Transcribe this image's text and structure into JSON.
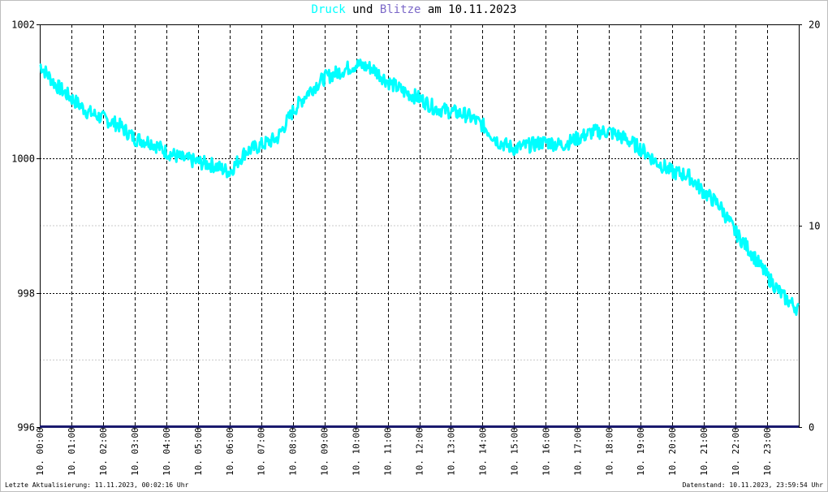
{
  "title": {
    "series1": "Druck",
    "connector": "und",
    "series2": "Blitze",
    "date_prefix": "am",
    "date": "10.11.2023"
  },
  "colors": {
    "druck": "#00ffff",
    "blitze": "#7b68c8",
    "blitze_line": "#1a1a6e",
    "grid": "#000000",
    "minor_grid": "#c8c8c8"
  },
  "footer": {
    "left": "Letzte Aktualisierung: 11.11.2023, 00:02:16 Uhr",
    "right": "Datenstand: 10.11.2023, 23:59:54 Uhr"
  },
  "chart_data": {
    "type": "line",
    "x_tick_labels": [
      "10. 00:00",
      "10. 01:00",
      "10. 02:00",
      "10. 03:00",
      "10. 04:00",
      "10. 05:00",
      "10. 06:00",
      "10. 07:00",
      "10. 08:00",
      "10. 09:00",
      "10. 10:00",
      "10. 11:00",
      "10. 12:00",
      "10. 13:00",
      "10. 14:00",
      "10. 15:00",
      "10. 16:00",
      "10. 17:00",
      "10. 18:00",
      "10. 19:00",
      "10. 20:00",
      "10. 21:00",
      "10. 22:00",
      "10. 23:00"
    ],
    "y_left_ticks": [
      "1002",
      "1000",
      "998",
      "996"
    ],
    "y_right_ticks": [
      "20",
      "10",
      "0"
    ],
    "ylim_left": [
      996,
      1002
    ],
    "ylim_right": [
      0,
      20
    ],
    "grid": true,
    "series": [
      {
        "name": "Druck",
        "axis": "left",
        "x_hours": [
          0,
          0.5,
          1,
          1.5,
          2,
          2.5,
          3,
          3.5,
          4,
          4.5,
          5,
          5.5,
          6,
          6.5,
          7,
          7.5,
          8,
          8.5,
          9,
          9.5,
          10,
          10.5,
          11,
          11.5,
          12,
          12.5,
          13,
          13.5,
          14,
          14.5,
          15,
          15.5,
          16,
          16.5,
          17,
          17.5,
          18,
          18.5,
          19,
          19.5,
          20,
          20.5,
          21,
          21.5,
          22,
          22.5,
          23,
          23.5,
          24
        ],
        "values": [
          1001.4,
          1001.1,
          1000.9,
          1000.7,
          1000.6,
          1000.5,
          1000.3,
          1000.25,
          1000.1,
          1000.0,
          999.95,
          999.9,
          999.8,
          1000.1,
          1000.2,
          1000.3,
          1000.7,
          1001.0,
          1001.2,
          1001.3,
          1001.4,
          1001.35,
          1001.15,
          1001.0,
          1000.9,
          1000.75,
          1000.7,
          1000.65,
          1000.5,
          1000.25,
          1000.15,
          1000.2,
          1000.25,
          1000.2,
          1000.3,
          1000.4,
          1000.4,
          1000.3,
          1000.15,
          999.95,
          999.8,
          999.75,
          999.5,
          999.3,
          998.9,
          998.6,
          998.25,
          997.95,
          997.75
        ]
      },
      {
        "name": "Blitze",
        "axis": "right",
        "x_hours": [
          0,
          24
        ],
        "values": [
          0,
          0
        ]
      }
    ]
  }
}
